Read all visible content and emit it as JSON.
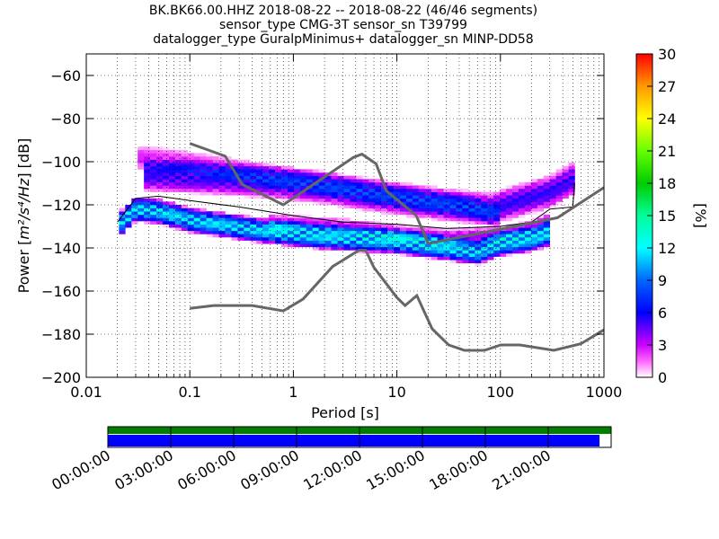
{
  "chart_data": {
    "type": "heatmap",
    "title_lines": [
      "BK.BK66.00.HHZ   2018-08-22 -- 2018-08-22  (46/46 segments)",
      "sensor_type CMG-3T sensor_sn T39799",
      "datalogger_type GuralpMinimus+ datalogger_sn MINP-DD58"
    ],
    "xlabel": "Period [s]",
    "ylabel_prefix": "Power [",
    "ylabel_math": "m²/s⁴/Hz",
    "ylabel_suffix": "] [dB]",
    "x_scale": "log",
    "xlim": [
      0.01,
      1000
    ],
    "ylim": [
      -200,
      -50
    ],
    "x_ticks": [
      0.01,
      0.1,
      1,
      10,
      100,
      1000
    ],
    "x_tick_labels": [
      "0.01",
      "0.1",
      "1",
      "10",
      "100",
      "1000"
    ],
    "y_ticks": [
      -200,
      -180,
      -160,
      -140,
      -120,
      -100,
      -80,
      -60
    ],
    "y_tick_labels": [
      "−200",
      "−180",
      "−160",
      "−140",
      "−120",
      "−100",
      "−80",
      "−60"
    ],
    "grid": "dotted",
    "colorbar": {
      "label": "[%]",
      "range": [
        0,
        30
      ],
      "ticks": [
        "0",
        "3",
        "6",
        "9",
        "12",
        "15",
        "18",
        "21",
        "24",
        "27",
        "30"
      ]
    },
    "noise_models": [
      {
        "name": "NHNM",
        "points": [
          [
            0.1,
            -91.5
          ],
          [
            0.22,
            -97.4
          ],
          [
            0.32,
            -110.5
          ],
          [
            0.8,
            -120
          ],
          [
            3.8,
            -98
          ],
          [
            4.6,
            -96.5
          ],
          [
            6.3,
            -101
          ],
          [
            7.9,
            -113.5
          ],
          [
            15.4,
            -125
          ],
          [
            20,
            -138
          ],
          [
            354.8,
            -126
          ],
          [
            1000,
            -112
          ]
        ]
      },
      {
        "name": "NLNM",
        "points": [
          [
            0.1,
            -168
          ],
          [
            0.17,
            -166.7
          ],
          [
            0.4,
            -166.7
          ],
          [
            0.8,
            -169.2
          ],
          [
            1.24,
            -163.7
          ],
          [
            2.4,
            -148.6
          ],
          [
            4.3,
            -141.1
          ],
          [
            5,
            -141.1
          ],
          [
            6,
            -149
          ],
          [
            10,
            -163
          ],
          [
            12,
            -166.7
          ],
          [
            15.6,
            -162.1
          ],
          [
            21.9,
            -177.5
          ],
          [
            31.6,
            -185
          ],
          [
            45,
            -187.5
          ],
          [
            70,
            -187.5
          ],
          [
            101,
            -185
          ],
          [
            154,
            -185
          ],
          [
            328,
            -187.5
          ],
          [
            600,
            -184.4
          ],
          [
            1000,
            -178
          ]
        ]
      }
    ],
    "mean_psd": [
      [
        0.02,
        -128
      ],
      [
        0.03,
        -117
      ],
      [
        0.05,
        -116
      ],
      [
        0.1,
        -118
      ],
      [
        0.3,
        -121
      ],
      [
        1,
        -125
      ],
      [
        3,
        -128
      ],
      [
        10,
        -129
      ],
      [
        30,
        -131
      ],
      [
        100,
        -130
      ],
      [
        200,
        -128
      ],
      [
        300,
        -122
      ],
      [
        500,
        -121
      ],
      [
        520,
        -110
      ]
    ],
    "density_bands": [
      {
        "center": [
          [
            0.02,
            -130
          ],
          [
            0.03,
            -122
          ],
          [
            0.05,
            -123
          ],
          [
            0.1,
            -127
          ],
          [
            0.5,
            -132
          ],
          [
            2,
            -135
          ],
          [
            10,
            -137
          ],
          [
            30,
            -140
          ],
          [
            60,
            -142
          ],
          [
            100,
            -138
          ],
          [
            200,
            -136
          ],
          [
            300,
            -133
          ]
        ],
        "width": 6,
        "peak": 13
      },
      {
        "center": [
          [
            0.035,
            -106
          ],
          [
            0.1,
            -107
          ],
          [
            0.5,
            -109
          ],
          [
            2,
            -112
          ],
          [
            5,
            -115
          ],
          [
            10,
            -117
          ],
          [
            30,
            -120
          ],
          [
            80,
            -122
          ],
          [
            150,
            -118
          ],
          [
            300,
            -114
          ],
          [
            500,
            -108
          ]
        ],
        "width": 8,
        "peak": 6
      },
      {
        "center": [
          [
            0.03,
            -98
          ],
          [
            0.08,
            -100
          ],
          [
            0.5,
            -106
          ],
          [
            3,
            -112
          ],
          [
            10,
            -116
          ],
          [
            50,
            -121
          ],
          [
            100,
            -126
          ]
        ],
        "width": 6,
        "peak": 3
      },
      {
        "center": [
          [
            0.6,
            -128
          ],
          [
            3,
            -130
          ],
          [
            10,
            -133
          ],
          [
            30,
            -135
          ],
          [
            100,
            -134
          ],
          [
            200,
            -131
          ],
          [
            300,
            -127
          ]
        ],
        "width": 4,
        "peak": 4
      }
    ],
    "period_edge": [
      [
        0.02,
        -128
      ],
      [
        0.022,
        -137
      ],
      [
        0.03,
        -123
      ]
    ]
  },
  "timeline": {
    "tick_labels": [
      "00:00:00",
      "03:00:00",
      "06:00:00",
      "09:00:00",
      "12:00:00",
      "15:00:00",
      "18:00:00",
      "21:00:00"
    ],
    "coverage_fraction": 0.977,
    "colors": {
      "top": "#007f00",
      "bottom": "#0000ff"
    }
  }
}
